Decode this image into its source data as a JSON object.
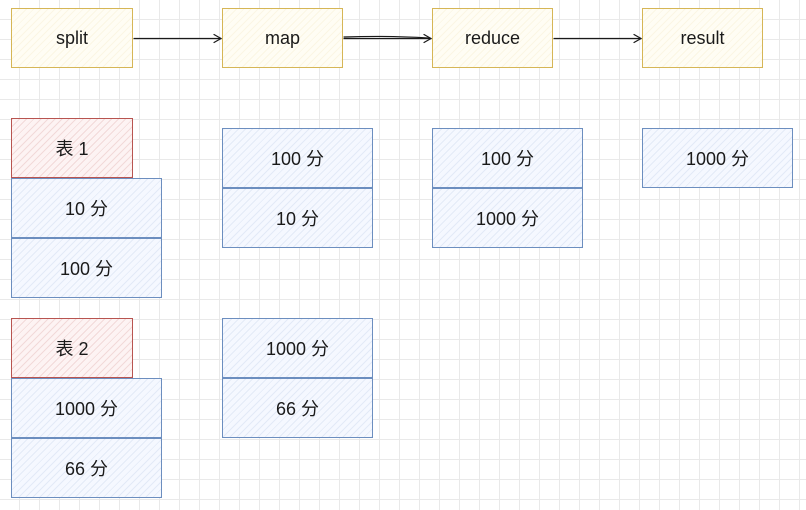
{
  "stages": {
    "split": "split",
    "map": "map",
    "reduce": "reduce",
    "result": "result"
  },
  "split_column": {
    "table1": {
      "header": "表 1",
      "rows": [
        "10 分",
        "100 分"
      ]
    },
    "table2": {
      "header": "表 2",
      "rows": [
        "1000 分",
        "66 分"
      ]
    }
  },
  "map_column": {
    "group1": [
      "100 分",
      "10 分"
    ],
    "group2": [
      "1000 分",
      "66 分"
    ]
  },
  "reduce_column": [
    "100 分",
    "1000 分"
  ],
  "result_column": [
    "1000 分"
  ],
  "colors": {
    "stage_border": "#d6b656",
    "cell_border": "#6c8ebf",
    "header_border": "#b85450",
    "arrow": "#1a1a1a"
  }
}
